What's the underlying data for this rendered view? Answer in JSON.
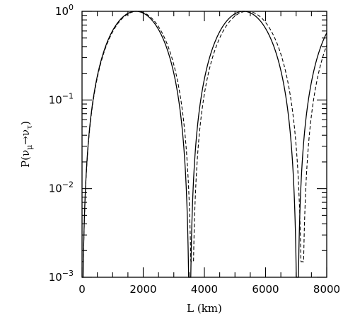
{
  "chart_data": {
    "type": "line",
    "xlabel": "L (km)",
    "ylabel": "P(νμ→ντ)",
    "ylabel_parts": {
      "prefix": "P(ν",
      "sub1": "μ",
      "arrow": "→ν",
      "sub2": "τ",
      "suffix": ")"
    },
    "xlim": [
      0,
      8000
    ],
    "ylim": [
      0.001,
      1
    ],
    "yscale": "log",
    "grid": false,
    "x_ticks": [
      "0",
      "2000",
      "4000",
      "6000",
      "8000"
    ],
    "y_ticks": [
      {
        "value": 0.001,
        "base": "10",
        "exp": "−3"
      },
      {
        "value": 0.01,
        "base": "10",
        "exp": "−2"
      },
      {
        "value": 0.1,
        "base": "10",
        "exp": "−1"
      },
      {
        "value": 1,
        "base": "10",
        "exp": "0"
      }
    ],
    "series": [
      {
        "style": "solid",
        "period_km": 3520,
        "min_P": 0.001
      },
      {
        "style": "dashed",
        "period_km": 3600,
        "min_P": 0.0015
      }
    ]
  }
}
